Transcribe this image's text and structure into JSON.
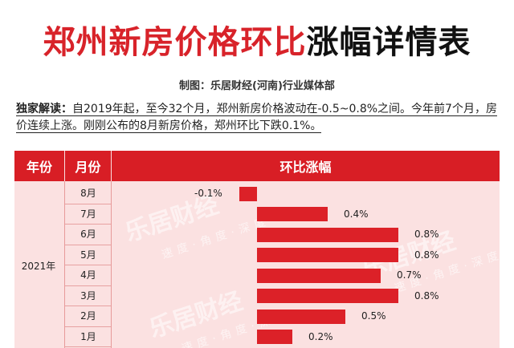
{
  "title_red": "郑州新房价格环比",
  "title_black": "涨幅详情表",
  "credit": "制图：乐居财经(河南)行业媒体部",
  "intro": {
    "label": "独家解读：",
    "text": "自2019年起，至今32个月，郑州新房价格波动在-0.5~0.8%之间。今年前7个月，房价连续上涨。刚刚公布的8月新房价格，郑州环比下跌0.1%。"
  },
  "table_headers": {
    "year": "年份",
    "month": "月份",
    "change": "环比涨幅"
  },
  "watermark": {
    "brand": "乐居财经",
    "slogan": "速度·角度·深度"
  },
  "colors": {
    "accent": "#d81e25",
    "bar": "#dc2128",
    "panel": "#fbe1e1"
  },
  "chart_data": {
    "type": "bar",
    "orientation": "horizontal",
    "year": "2021年",
    "categories": [
      "8月",
      "7月",
      "6月",
      "5月",
      "4月",
      "3月",
      "2月",
      "1月"
    ],
    "values": [
      -0.1,
      0.4,
      0.8,
      0.8,
      0.7,
      0.8,
      0.5,
      0.2
    ],
    "value_labels": [
      "-0.1%",
      "0.4%",
      "0.8%",
      "0.8%",
      "0.7%",
      "0.8%",
      "0.5%",
      "0.2%"
    ],
    "xlim": [
      -0.5,
      0.8
    ],
    "grid": false,
    "legend": "none"
  }
}
